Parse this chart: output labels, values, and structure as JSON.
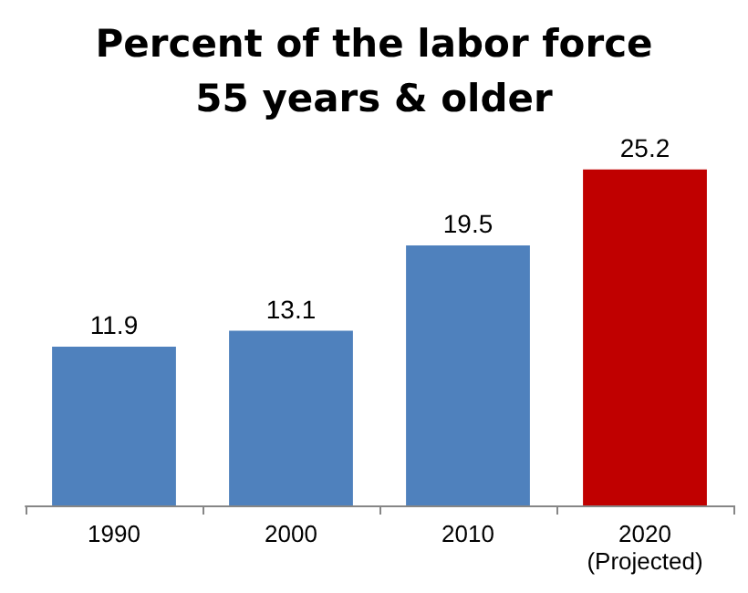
{
  "chart_data": {
    "type": "bar",
    "title": "Percent of the labor force\n55 years & older",
    "categories": [
      "1990",
      "2000",
      "2010",
      "2020\n(Projected)"
    ],
    "values": [
      11.9,
      13.1,
      19.5,
      25.2
    ],
    "colors": [
      "#4f81bd",
      "#4f81bd",
      "#4f81bd",
      "#c00000"
    ],
    "data_labels": true
  }
}
